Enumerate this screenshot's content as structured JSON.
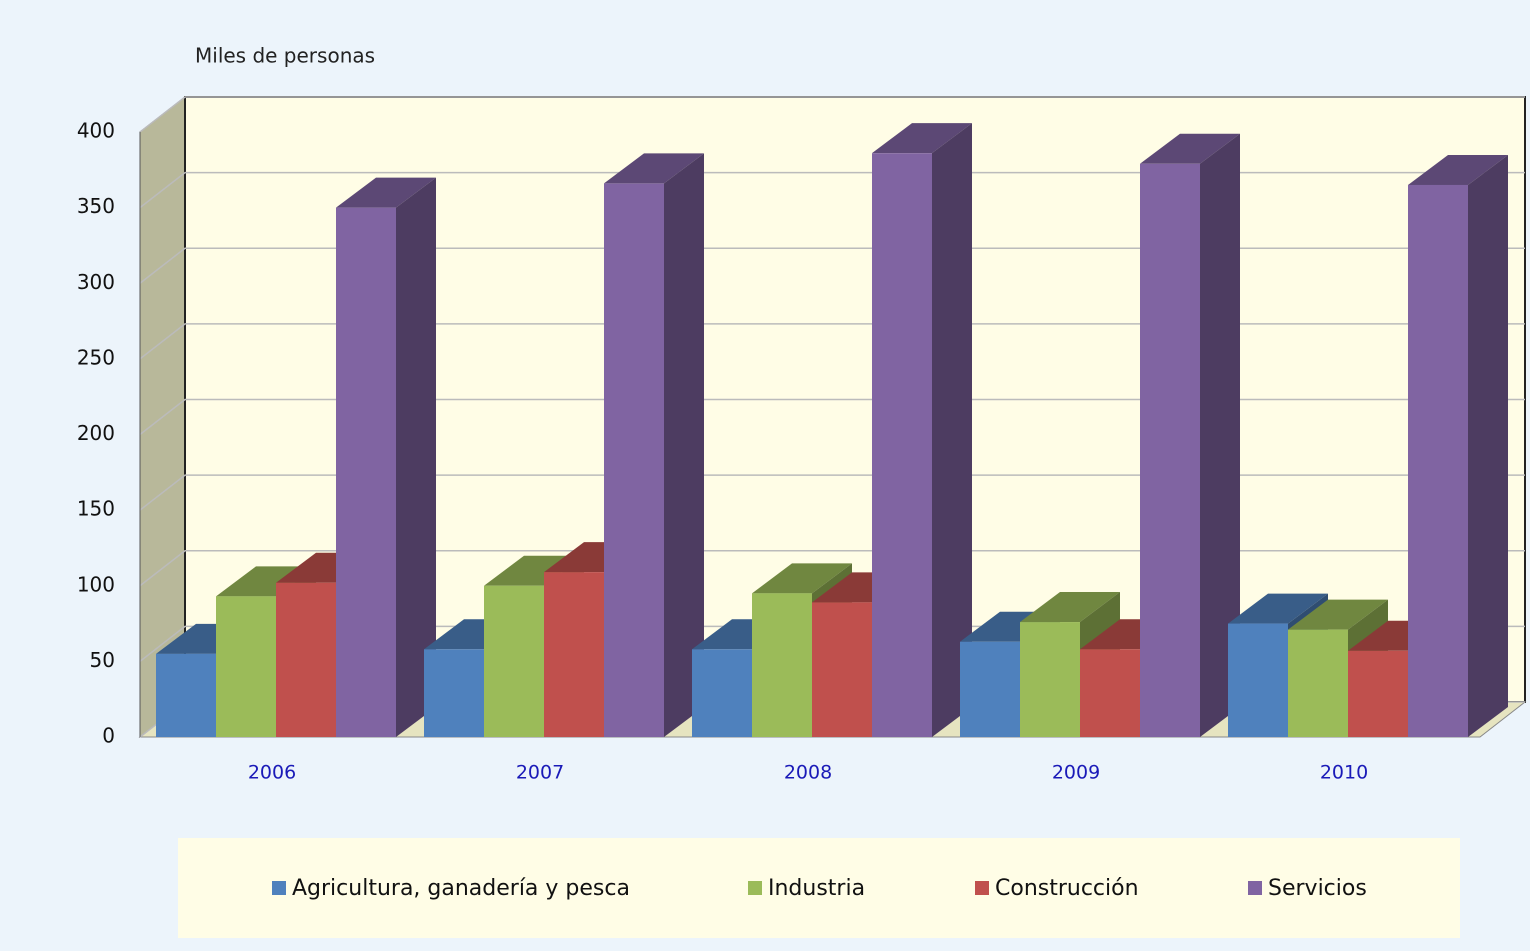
{
  "chart_data": {
    "type": "bar3d",
    "y_label": "Miles de personas",
    "categories": [
      "2006",
      "2007",
      "2008",
      "2009",
      "2010"
    ],
    "series": [
      {
        "name": "Agricultura, ganadería y pesca",
        "color": "#4f81bd",
        "values": [
          55,
          58,
          58,
          63,
          75
        ]
      },
      {
        "name": "Industria",
        "color": "#9bbb59",
        "values": [
          93,
          100,
          95,
          76,
          71
        ]
      },
      {
        "name": "Construcción",
        "color": "#c0504d",
        "values": [
          102,
          109,
          89,
          58,
          57
        ]
      },
      {
        "name": "Servicios",
        "color": "#8064a2",
        "values": [
          350,
          366,
          386,
          379,
          365
        ]
      }
    ],
    "ylim": [
      0,
      400
    ],
    "yticks": [
      0,
      50,
      100,
      150,
      200,
      250,
      300,
      350,
      400
    ],
    "grid": true,
    "legend": "bottom"
  }
}
